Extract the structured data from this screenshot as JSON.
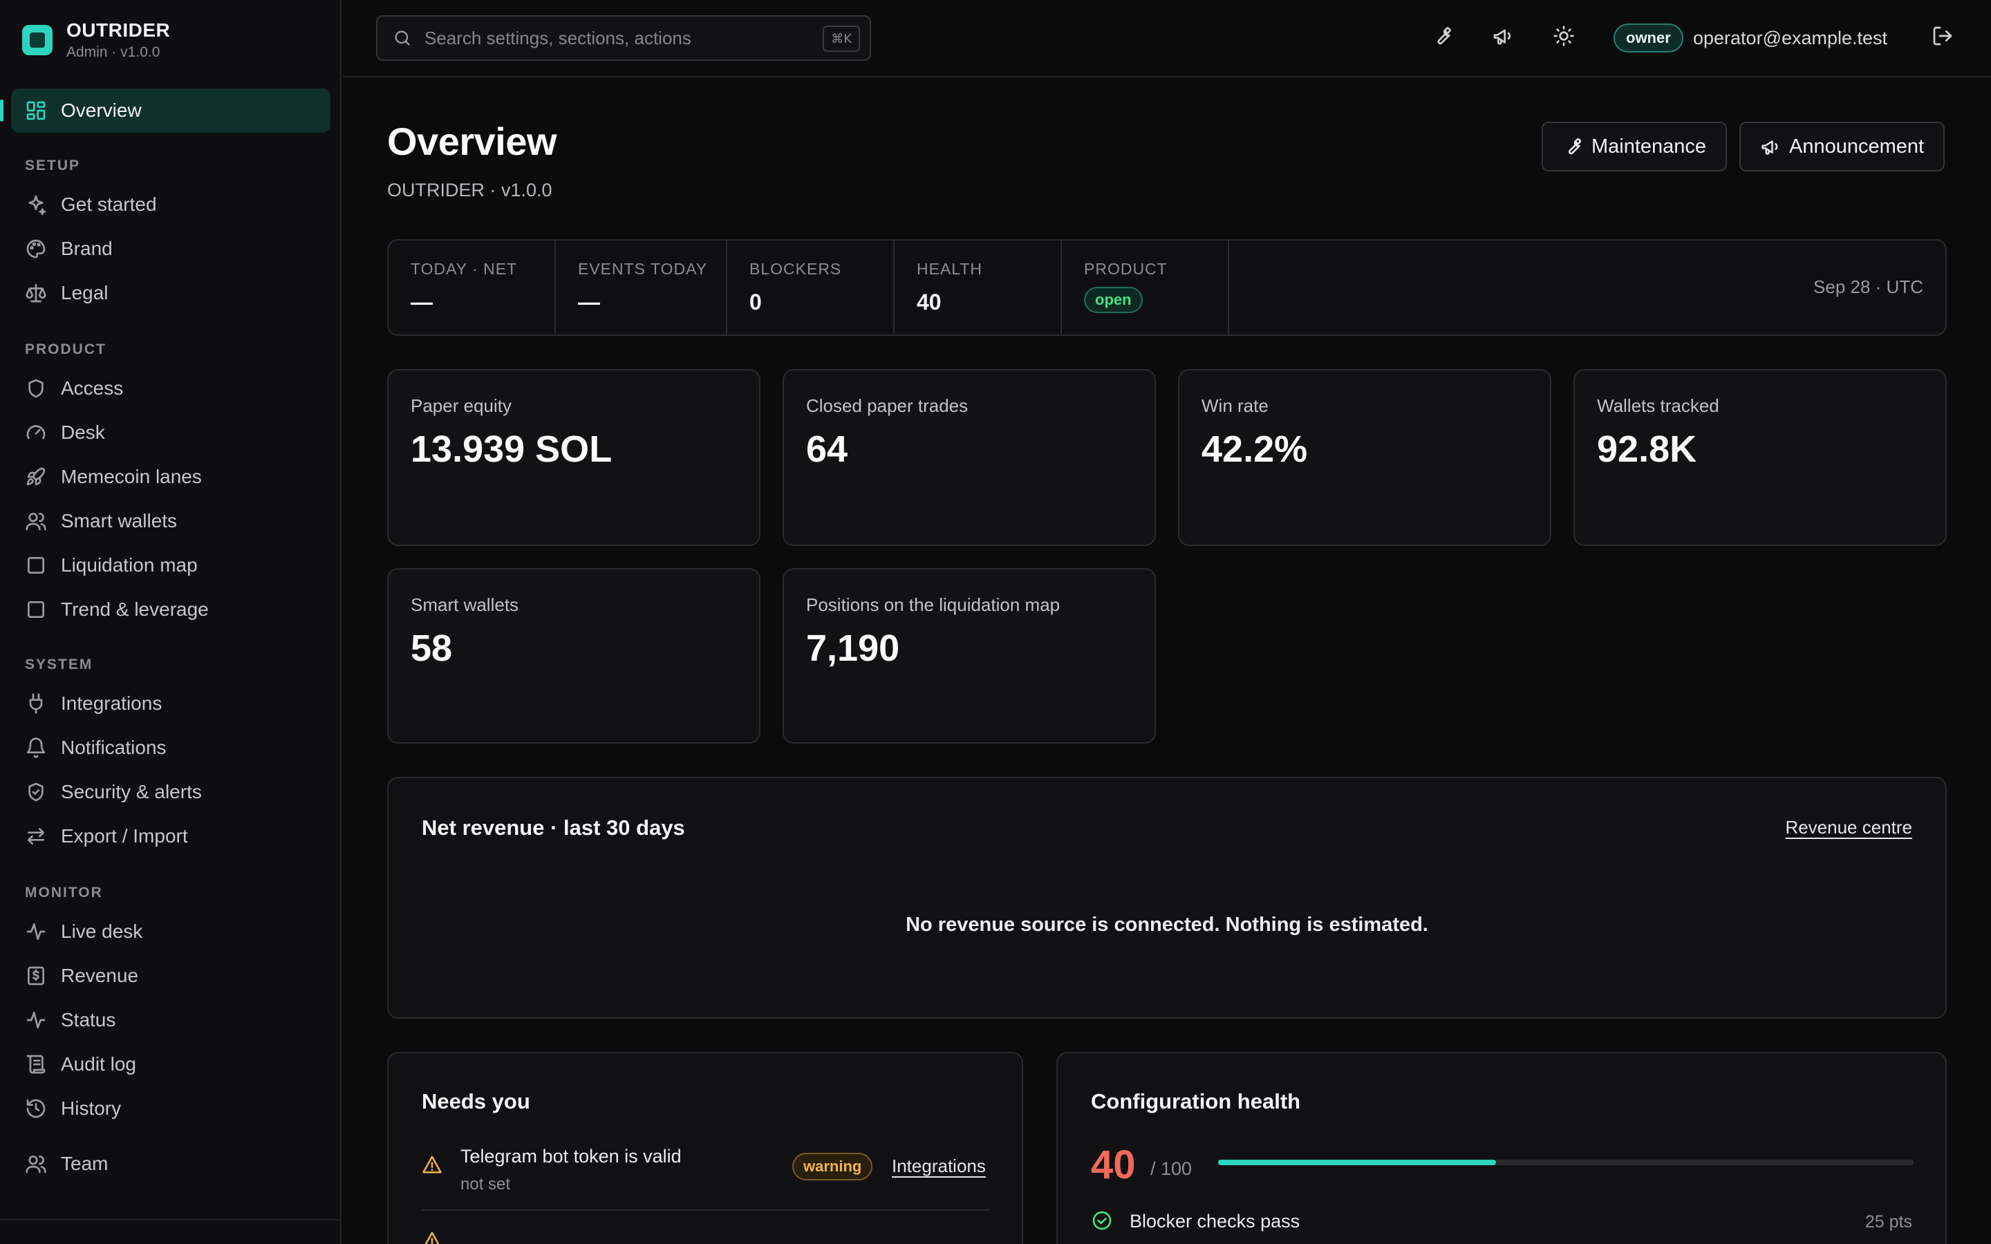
{
  "app": {
    "name": "OUTRIDER",
    "subtitle": "Admin · v1.0.0"
  },
  "sidebar": {
    "active": {
      "label": "Overview",
      "icon": "grid-icon"
    },
    "sections": [
      {
        "title": "SETUP",
        "items": [
          {
            "label": "Get started",
            "icon": "sparkles-icon"
          },
          {
            "label": "Brand",
            "icon": "palette-icon"
          },
          {
            "label": "Legal",
            "icon": "scale-icon"
          }
        ]
      },
      {
        "title": "PRODUCT",
        "items": [
          {
            "label": "Access",
            "icon": "shield-icon"
          },
          {
            "label": "Desk",
            "icon": "gauge-icon"
          },
          {
            "label": "Memecoin lanes",
            "icon": "rocket-icon"
          },
          {
            "label": "Smart wallets",
            "icon": "users-icon"
          },
          {
            "label": "Liquidation map",
            "icon": "square-icon"
          },
          {
            "label": "Trend & leverage",
            "icon": "square-icon"
          }
        ]
      },
      {
        "title": "SYSTEM",
        "items": [
          {
            "label": "Integrations",
            "icon": "plug-icon"
          },
          {
            "label": "Notifications",
            "icon": "bell-icon"
          },
          {
            "label": "Security & alerts",
            "icon": "shield-check-icon"
          },
          {
            "label": "Export / Import",
            "icon": "arrows-icon"
          }
        ]
      },
      {
        "title": "MONITOR",
        "items": [
          {
            "label": "Live desk",
            "icon": "activity-icon"
          },
          {
            "label": "Revenue",
            "icon": "receipt-icon"
          },
          {
            "label": "Status",
            "icon": "activity-icon"
          },
          {
            "label": "Audit log",
            "icon": "scroll-icon"
          },
          {
            "label": "History",
            "icon": "history-icon"
          }
        ]
      }
    ],
    "team": {
      "label": "Team",
      "icon": "users-icon"
    }
  },
  "topbar": {
    "search_placeholder": "Search settings, sections, actions",
    "shortcut": "⌘K",
    "role": "owner",
    "email": "operator@example.test"
  },
  "page": {
    "title": "Overview",
    "subtitle": "OUTRIDER · v1.0.0",
    "buttons": {
      "maintenance": "Maintenance",
      "announcement": "Announcement"
    }
  },
  "stats": {
    "today_net_label": "TODAY · NET",
    "today_net": "—",
    "events_label": "EVENTS TODAY",
    "events": "—",
    "blockers_label": "BLOCKERS",
    "blockers": "0",
    "health_label": "HEALTH",
    "health": "40",
    "product_label": "PRODUCT",
    "product": "open",
    "date": "Sep 28 · UTC"
  },
  "cards": [
    {
      "label": "Paper equity",
      "value": "13.939 SOL"
    },
    {
      "label": "Closed paper trades",
      "value": "64"
    },
    {
      "label": "Win rate",
      "value": "42.2%"
    },
    {
      "label": "Wallets tracked",
      "value": "92.8K"
    },
    {
      "label": "Smart wallets",
      "value": "58"
    },
    {
      "label": "Positions on the liquidation map",
      "value": "7,190"
    }
  ],
  "revenue": {
    "title": "Net revenue · last 30 days",
    "link": "Revenue centre",
    "empty": "No revenue source is connected. Nothing is estimated."
  },
  "needs": {
    "title": "Needs you",
    "items": [
      {
        "title": "Telegram bot token is valid",
        "sub": "not set",
        "badge": "warning",
        "link": "Integrations"
      }
    ]
  },
  "health": {
    "title": "Configuration health",
    "score": "40",
    "of": "/ 100",
    "progress": 0.4,
    "checks": [
      {
        "label": "Blocker checks pass",
        "pts": "25 pts"
      }
    ]
  },
  "colors": {
    "accent": "#2dd4bf",
    "danger": "#f06a5a",
    "warning": "#f0b44a",
    "success": "#4ade80"
  }
}
